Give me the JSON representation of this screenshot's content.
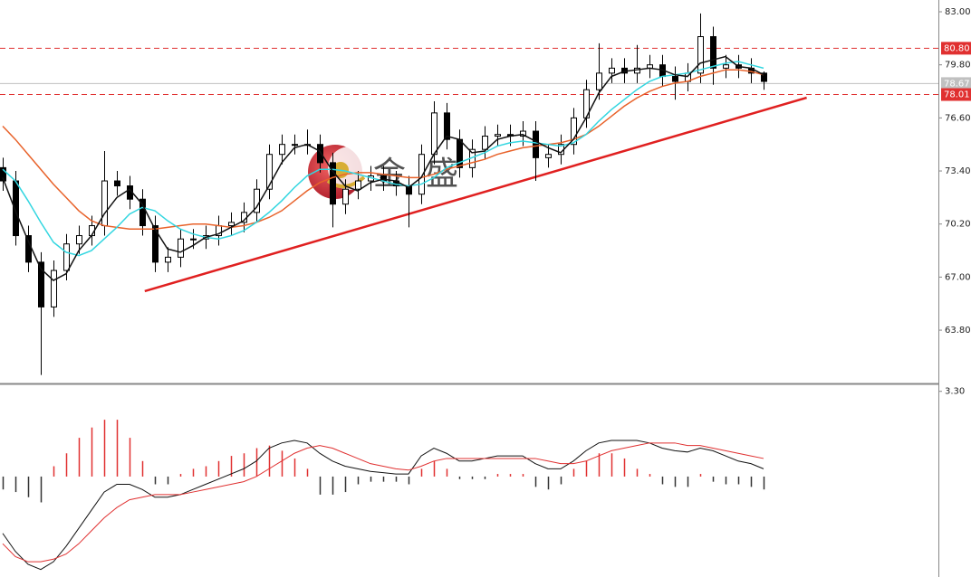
{
  "watermark": "金盛",
  "chart_data": [
    {
      "type": "candlestick",
      "open": [
        73.6,
        72.8,
        69.5,
        67.9,
        65.2,
        67.4,
        69.0,
        69.5,
        70.1,
        72.8,
        72.5,
        71.7,
        70.1,
        67.9,
        68.2,
        69.3,
        69.3,
        69.5,
        70.1,
        70.3,
        70.9,
        72.3,
        74.4,
        75.0,
        75.0,
        75.0,
        73.9,
        71.4,
        72.3,
        72.8,
        73.1,
        72.8,
        72.5,
        72.0,
        74.4,
        76.9,
        75.3,
        73.6,
        74.7,
        75.5,
        75.6,
        75.5,
        75.8,
        74.2,
        74.4,
        75.0,
        76.6,
        78.3,
        79.3,
        79.6,
        79.3,
        79.6,
        79.8,
        79.1,
        78.8,
        79.3,
        81.5,
        79.6,
        79.8,
        79.6,
        79.3
      ],
      "high": [
        74.2,
        73.4,
        70.1,
        68.5,
        68.0,
        69.6,
        70.1,
        70.7,
        74.6,
        73.4,
        73.1,
        72.3,
        70.7,
        68.8,
        69.9,
        69.9,
        70.1,
        70.7,
        70.9,
        71.5,
        72.9,
        75.0,
        75.6,
        75.6,
        75.9,
        75.6,
        74.5,
        72.9,
        73.4,
        73.7,
        73.7,
        73.4,
        73.1,
        75.0,
        77.6,
        77.5,
        75.9,
        75.3,
        76.1,
        76.2,
        76.2,
        76.4,
        76.4,
        75.0,
        75.6,
        77.2,
        78.9,
        81.1,
        80.2,
        80.2,
        81.0,
        80.4,
        80.4,
        79.7,
        79.9,
        82.9,
        82.1,
        80.4,
        80.4,
        80.2,
        79.4
      ],
      "low": [
        72.2,
        68.9,
        67.3,
        61.1,
        64.6,
        66.8,
        68.4,
        68.9,
        69.5,
        71.9,
        71.1,
        69.5,
        67.3,
        67.3,
        67.6,
        68.7,
        68.7,
        68.9,
        69.5,
        69.7,
        70.3,
        71.7,
        73.8,
        74.4,
        74.4,
        73.3,
        70.0,
        70.8,
        71.7,
        72.2,
        72.2,
        71.9,
        70.0,
        71.4,
        73.8,
        74.7,
        73.0,
        73.0,
        74.1,
        74.9,
        74.9,
        74.9,
        72.8,
        73.6,
        73.8,
        74.4,
        76.0,
        77.7,
        78.7,
        78.7,
        78.7,
        79.0,
        78.5,
        77.7,
        78.2,
        78.7,
        78.6,
        79.0,
        79.0,
        78.7,
        78.3
      ],
      "close": [
        72.8,
        69.5,
        67.9,
        65.2,
        67.4,
        69.0,
        69.5,
        70.1,
        72.8,
        72.5,
        71.7,
        70.1,
        67.9,
        68.2,
        69.3,
        69.3,
        69.5,
        70.1,
        70.3,
        70.9,
        72.3,
        74.4,
        75.0,
        75.0,
        75.0,
        73.9,
        71.4,
        72.3,
        72.8,
        73.1,
        72.8,
        72.5,
        72.0,
        74.4,
        76.9,
        75.3,
        73.6,
        74.7,
        75.5,
        75.6,
        75.5,
        75.8,
        74.2,
        74.4,
        75.0,
        76.6,
        78.3,
        79.3,
        79.6,
        79.3,
        79.6,
        79.8,
        79.1,
        78.8,
        79.3,
        81.5,
        79.6,
        79.8,
        79.6,
        79.3,
        78.8
      ],
      "up_color": "#ffffff",
      "down_color": "#000000",
      "lines": [
        {
          "color": "#e8622a",
          "values": [
            76.1,
            75.3,
            74.4,
            73.5,
            72.6,
            71.8,
            71.0,
            70.4,
            70.1,
            70.0,
            69.9,
            69.9,
            69.9,
            70.0,
            70.1,
            70.2,
            70.2,
            70.1,
            70.0,
            70.1,
            70.3,
            70.6,
            71.0,
            71.6,
            72.2,
            72.7,
            73.0,
            73.2,
            73.3,
            73.3,
            73.2,
            73.1,
            73.0,
            73.0,
            73.2,
            73.5,
            73.7,
            73.9,
            74.1,
            74.4,
            74.6,
            74.8,
            74.9,
            75.0,
            75.1,
            75.3,
            75.6,
            76.1,
            76.7,
            77.3,
            77.8,
            78.2,
            78.5,
            78.7,
            78.8,
            79.1,
            79.3,
            79.5,
            79.5,
            79.4,
            79.2
          ]
        },
        {
          "color": "#33d6e0",
          "values": [
            73.5,
            72.8,
            71.6,
            70.3,
            69.1,
            68.5,
            68.3,
            68.6,
            69.3,
            70.0,
            70.8,
            71.2,
            71.0,
            70.4,
            69.9,
            69.6,
            69.4,
            69.3,
            69.5,
            69.8,
            70.3,
            70.9,
            71.6,
            72.4,
            73.1,
            73.5,
            73.5,
            73.4,
            73.2,
            73.0,
            72.8,
            72.6,
            72.5,
            72.6,
            73.0,
            73.6,
            73.9,
            74.2,
            74.5,
            74.9,
            75.1,
            75.2,
            75.1,
            75.0,
            74.9,
            75.1,
            75.6,
            76.4,
            77.1,
            77.7,
            78.3,
            78.8,
            79.1,
            79.2,
            79.3,
            79.5,
            79.7,
            79.9,
            80.0,
            79.8,
            79.6
          ]
        },
        {
          "color": "#111111",
          "values": [
            73.0,
            71.0,
            69.2,
            67.5,
            66.8,
            67.2,
            68.6,
            69.5,
            70.8,
            71.8,
            72.3,
            71.4,
            69.9,
            68.7,
            68.5,
            68.9,
            69.4,
            69.6,
            70.0,
            70.4,
            71.2,
            72.5,
            73.9,
            74.8,
            75.0,
            74.6,
            73.4,
            72.5,
            72.2,
            72.7,
            72.9,
            72.8,
            72.4,
            73.0,
            74.4,
            75.5,
            75.3,
            74.5,
            74.6,
            75.3,
            75.5,
            75.6,
            75.2,
            74.8,
            74.5,
            75.3,
            76.6,
            78.1,
            79.1,
            79.4,
            79.5,
            79.6,
            79.5,
            79.2,
            79.1,
            79.9,
            80.1,
            80.3,
            79.7,
            79.6,
            79.2
          ]
        }
      ],
      "trendline": {
        "color": "#e02020",
        "x": [
          11.2,
          63.4
        ],
        "values": [
          66.15,
          77.82
        ]
      },
      "hlines": [
        {
          "value": 80.8,
          "label": "80.80",
          "color": "#e03030",
          "style": "dashed"
        },
        {
          "value": 78.67,
          "label": "78.67",
          "color": "#c0c0c0",
          "style": "solid"
        },
        {
          "value": 78.01,
          "label": "78.01",
          "color": "#e03030",
          "style": "dashed"
        }
      ],
      "ylim": [
        60.64,
        83.71
      ],
      "yticks": [
        {
          "value": 83.0,
          "label": "83.00"
        },
        {
          "value": 79.8,
          "label": "79.80"
        },
        {
          "value": 76.6,
          "label": "76.60"
        },
        {
          "value": 73.4,
          "label": "73.40"
        },
        {
          "value": 70.2,
          "label": "70.20"
        },
        {
          "value": 67.0,
          "label": "67.00"
        },
        {
          "value": 63.8,
          "label": "63.80"
        }
      ]
    },
    {
      "type": "macd",
      "histogram": [
        -0.5,
        -0.6,
        -0.8,
        -1.0,
        0.4,
        0.9,
        1.5,
        1.9,
        2.2,
        2.2,
        1.5,
        0.6,
        -0.3,
        -0.3,
        0.1,
        0.3,
        0.4,
        0.6,
        0.8,
        0.9,
        1.1,
        1.2,
        1.0,
        0.7,
        0.3,
        -0.7,
        -0.7,
        -0.6,
        -0.3,
        -0.2,
        -0.2,
        -0.2,
        -0.3,
        0.3,
        0.6,
        0.3,
        -0.1,
        -0.1,
        -0.1,
        0.1,
        0.1,
        0.1,
        -0.4,
        -0.5,
        -0.3,
        0.3,
        0.6,
        0.9,
        0.9,
        0.7,
        0.3,
        0.1,
        -0.3,
        -0.4,
        -0.4,
        0.1,
        -0.2,
        -0.3,
        -0.3,
        -0.4,
        -0.5
      ],
      "up_color": "#e03030",
      "down_color": "#333333",
      "lines": [
        {
          "color": "#111111",
          "values": [
            -2.2,
            -2.9,
            -3.4,
            -3.6,
            -3.3,
            -2.7,
            -2.0,
            -1.3,
            -0.6,
            -0.3,
            -0.3,
            -0.5,
            -0.8,
            -0.8,
            -0.7,
            -0.5,
            -0.3,
            -0.1,
            0.1,
            0.3,
            0.6,
            1.1,
            1.3,
            1.4,
            1.3,
            0.9,
            0.6,
            0.4,
            0.3,
            0.2,
            0.15,
            0.1,
            0.1,
            0.8,
            1.1,
            0.9,
            0.6,
            0.6,
            0.7,
            0.8,
            0.8,
            0.8,
            0.5,
            0.3,
            0.3,
            0.6,
            1.0,
            1.3,
            1.4,
            1.4,
            1.4,
            1.3,
            1.1,
            1.0,
            0.95,
            1.1,
            1.0,
            0.8,
            0.6,
            0.5,
            0.3
          ]
        },
        {
          "color": "#e03030",
          "values": [
            -2.6,
            -3.1,
            -3.3,
            -3.3,
            -3.2,
            -3.0,
            -2.6,
            -2.1,
            -1.6,
            -1.2,
            -0.9,
            -0.8,
            -0.7,
            -0.7,
            -0.7,
            -0.6,
            -0.5,
            -0.4,
            -0.3,
            -0.2,
            0.0,
            0.3,
            0.6,
            0.9,
            1.1,
            1.2,
            1.1,
            0.9,
            0.7,
            0.5,
            0.4,
            0.3,
            0.25,
            0.4,
            0.6,
            0.7,
            0.7,
            0.7,
            0.7,
            0.7,
            0.7,
            0.7,
            0.7,
            0.6,
            0.5,
            0.5,
            0.6,
            0.8,
            1.0,
            1.1,
            1.2,
            1.3,
            1.3,
            1.3,
            1.2,
            1.2,
            1.1,
            1.0,
            0.9,
            0.8,
            0.7
          ]
        }
      ],
      "ylim": [
        -3.89,
        3.5
      ],
      "yticks": [
        {
          "value": 3.3,
          "label": "3.30"
        }
      ]
    }
  ]
}
